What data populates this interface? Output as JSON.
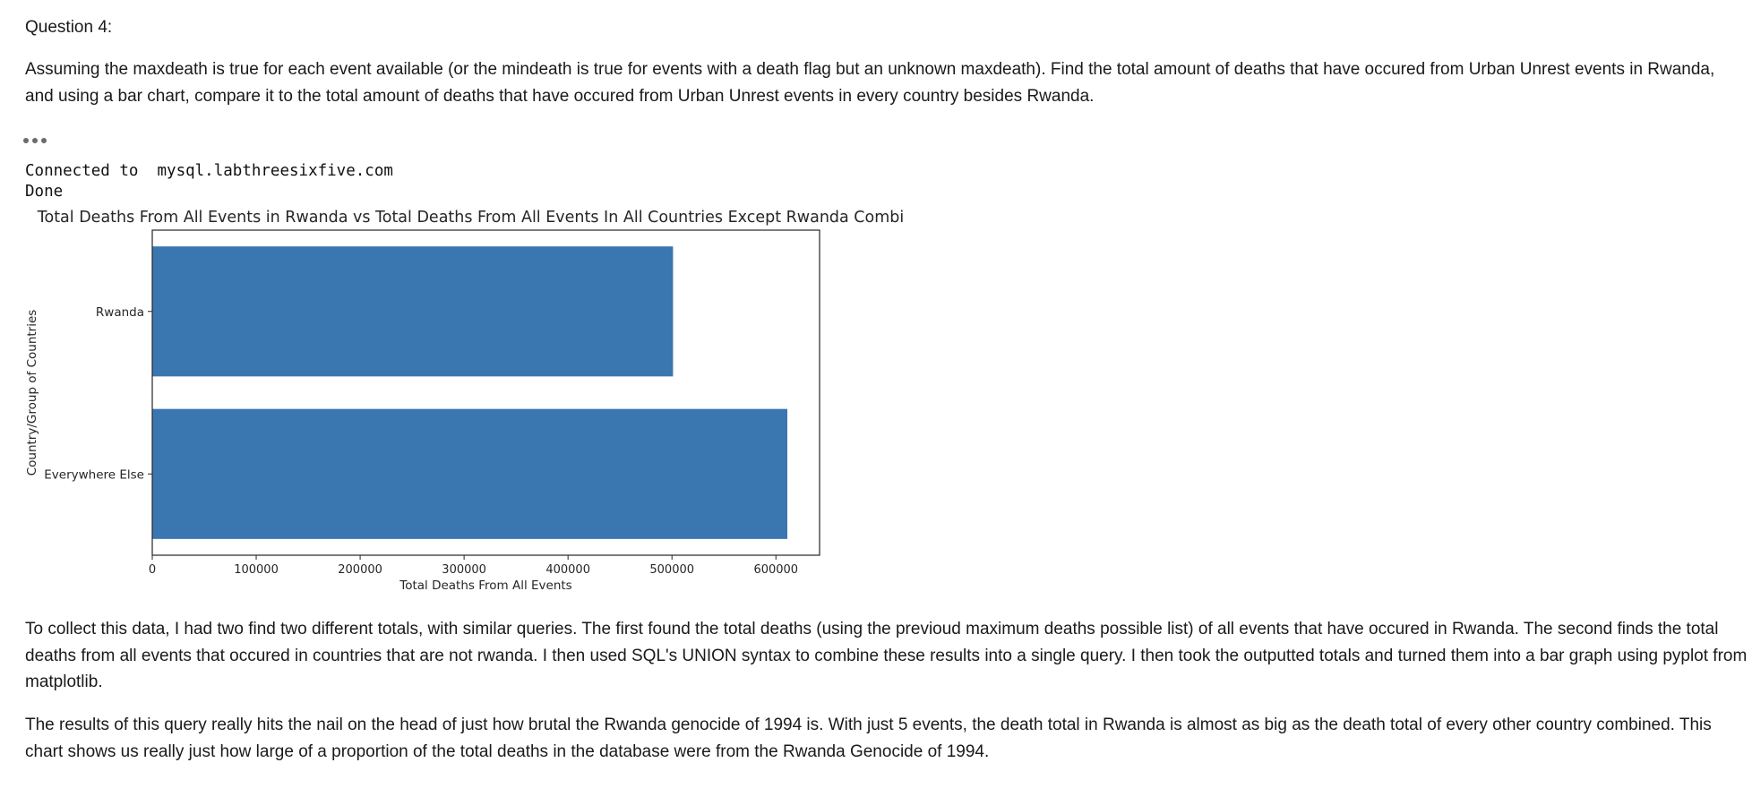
{
  "cell": {
    "question_title": "Question 4:",
    "question_body": "Assuming the maxdeath is true for each event available (or the mindeath is true for events with a death flag but an unknown maxdeath). Find the total amount of deaths that have occured from Urban Unrest events in Rwanda, and using a bar chart, compare it to the total amount of deaths that have occured from Urban Unrest events in every country besides Rwanda.",
    "output_line1": "Connected to  mysql.labthreesixfive.com",
    "output_line2": "Done",
    "paragraph1": "To collect this data, I had two find two different totals, with similar queries. The first found the total deaths (using the previoud maximum deaths possible list) of all events that have occured in Rwanda. The second finds the total deaths from all events that occured in countries that are not rwanda. I then used SQL's UNION syntax to combine these results into a single query. I then took the outputted totals and turned them into a bar graph using pyplot from matplotlib.",
    "paragraph2": "The results of this query really hits the nail on the head of just how brutal the Rwanda genocide of 1994 is. With just 5 events, the death total in Rwanda is almost as big as the death total of every other country combined. This chart shows us really just how large of a proportion of the total deaths in the database were from the Rwanda Genocide of 1994."
  },
  "chart_data": {
    "type": "bar",
    "orientation": "horizontal",
    "title": "Total Deaths From All Events in Rwanda vs Total Deaths From All Events In All Countries Except Rwanda Combined",
    "xlabel": "Total Deaths From All Events",
    "ylabel": "Country/Group of Countries",
    "categories": [
      "Rwanda",
      "Everywhere Else"
    ],
    "values": [
      501000,
      611000
    ],
    "xlim": [
      0,
      642000
    ],
    "xticks": [
      0,
      100000,
      200000,
      300000,
      400000,
      500000,
      600000
    ],
    "grid": false,
    "bar_color": "#3a76af"
  }
}
